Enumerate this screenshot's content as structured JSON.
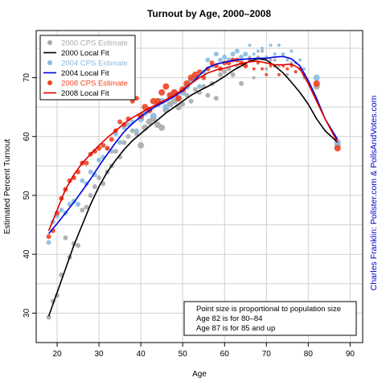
{
  "chart_data": {
    "type": "scatter",
    "title": "Turnout by Age, 2000–2008",
    "xlabel": "Age",
    "ylabel": "Estimated Percent Turnout",
    "xlim": [
      15,
      93
    ],
    "ylim": [
      25,
      78
    ],
    "x_ticks": [
      20,
      30,
      40,
      50,
      60,
      70,
      80,
      90
    ],
    "y_ticks": [
      30,
      40,
      50,
      60,
      70
    ],
    "grid": true,
    "legend_position": "top-left",
    "credit": "Charles Franklin: Pollster.com & PollsAndVotes.com",
    "note": [
      "Point size is proportional to population size",
      "Age 82 is for 80–84",
      "Age 87 is for 85 and up"
    ],
    "legend": [
      {
        "label": "2000 CPS Estimate",
        "kind": "point",
        "color": "#aaaaaa"
      },
      {
        "label": "2000 Local Fit",
        "kind": "line",
        "color": "#000000"
      },
      {
        "label": "2004 CPS Estimate",
        "kind": "point",
        "color": "#88bbe0"
      },
      {
        "label": "2004 Local Fit",
        "kind": "line",
        "color": "#0000dd"
      },
      {
        "label": "2008 CPS Estimate",
        "kind": "point",
        "color": "#ee4422"
      },
      {
        "label": "2008 Local Fit",
        "kind": "line",
        "color": "#dd0000"
      }
    ],
    "series": [
      {
        "name": "2000 CPS Estimate",
        "kind": "points",
        "color": "#aaaaaa",
        "x": [
          18,
          19,
          20,
          21,
          22,
          23,
          24,
          25,
          26,
          27,
          28,
          29,
          30,
          31,
          32,
          33,
          34,
          35,
          36,
          37,
          38,
          39,
          40,
          41,
          42,
          43,
          44,
          45,
          46,
          47,
          48,
          49,
          50,
          51,
          52,
          53,
          54,
          55,
          56,
          57,
          58,
          59,
          60,
          61,
          62,
          63,
          64,
          65,
          66,
          67,
          68,
          69,
          70,
          71,
          72,
          73,
          74,
          75,
          76,
          77,
          78,
          79,
          82,
          87
        ],
        "y": [
          29.3,
          32.0,
          33.0,
          36.5,
          42.8,
          39.5,
          41.8,
          41.5,
          47.5,
          48.0,
          50.0,
          51.5,
          53.0,
          52.0,
          54.0,
          55.0,
          57.5,
          56.5,
          59.0,
          60.0,
          61.0,
          60.5,
          58.5,
          61.5,
          62.5,
          63.0,
          62.0,
          61.5,
          64.5,
          65.5,
          66.0,
          65.0,
          65.5,
          67.0,
          66.0,
          68.0,
          67.5,
          68.5,
          67.0,
          69.0,
          66.5,
          70.5,
          71.0,
          71.5,
          70.5,
          72.0,
          69.0,
          72.0,
          73.5,
          70.0,
          73.5,
          74.5,
          71.5,
          73.0,
          73.0,
          72.0,
          74.0,
          70.5,
          72.5,
          71.0,
          71.5,
          70.0,
          68.5,
          58.5
        ],
        "sizes": [
          3,
          3,
          3,
          3,
          3,
          3,
          3,
          3,
          3,
          3,
          3,
          3,
          3,
          3,
          3,
          3,
          3,
          3,
          3,
          3,
          3,
          3,
          4,
          4,
          4,
          4,
          4,
          4,
          4,
          4,
          4,
          4,
          3,
          3,
          3,
          3,
          3,
          3,
          3,
          3,
          3,
          3,
          3,
          3,
          3,
          3,
          3,
          3,
          2,
          2,
          2,
          2,
          2,
          2,
          2,
          2,
          2,
          2,
          2,
          2,
          2,
          2,
          4,
          4
        ]
      },
      {
        "name": "2004 CPS Estimate",
        "kind": "points",
        "color": "#88bbe0",
        "x": [
          18,
          19,
          20,
          21,
          22,
          23,
          24,
          25,
          26,
          27,
          28,
          29,
          30,
          31,
          32,
          33,
          34,
          35,
          36,
          37,
          38,
          39,
          40,
          41,
          42,
          43,
          44,
          45,
          46,
          47,
          48,
          49,
          50,
          51,
          52,
          53,
          54,
          55,
          56,
          57,
          58,
          59,
          60,
          61,
          62,
          63,
          64,
          65,
          66,
          67,
          68,
          69,
          70,
          71,
          72,
          73,
          74,
          75,
          76,
          77,
          78,
          79,
          82,
          87
        ],
        "y": [
          42.0,
          45.5,
          46.5,
          47.5,
          47.0,
          48.5,
          49.0,
          48.5,
          52.5,
          52.0,
          54.0,
          53.5,
          56.0,
          56.5,
          58.0,
          57.5,
          60.5,
          59.0,
          61.5,
          62.0,
          62.5,
          61.0,
          63.0,
          64.0,
          64.5,
          63.5,
          65.5,
          66.0,
          65.0,
          67.0,
          67.5,
          66.5,
          67.5,
          68.5,
          69.5,
          70.0,
          68.5,
          71.0,
          73.0,
          72.0,
          74.0,
          73.0,
          73.5,
          73.0,
          74.0,
          74.5,
          73.5,
          74.0,
          75.5,
          74.0,
          74.5,
          75.0,
          73.5,
          75.5,
          74.0,
          75.5,
          74.0,
          73.0,
          74.5,
          72.5,
          73.0,
          71.5,
          70.0,
          59.0
        ],
        "sizes": [
          3,
          3,
          3,
          3,
          3,
          3,
          3,
          3,
          3,
          3,
          3,
          3,
          3,
          3,
          3,
          3,
          3,
          3,
          3,
          3,
          3,
          3,
          4,
          4,
          4,
          4,
          4,
          4,
          4,
          4,
          4,
          4,
          4,
          4,
          4,
          4,
          3,
          3,
          3,
          3,
          3,
          3,
          3,
          3,
          3,
          3,
          3,
          3,
          2,
          2,
          2,
          2,
          2,
          2,
          2,
          2,
          2,
          2,
          2,
          2,
          2,
          2,
          4,
          4
        ]
      },
      {
        "name": "2008 CPS Estimate",
        "kind": "points",
        "color": "#ee4422",
        "x": [
          18,
          19,
          20,
          21,
          22,
          23,
          24,
          25,
          26,
          27,
          28,
          29,
          30,
          31,
          32,
          33,
          34,
          35,
          36,
          37,
          38,
          39,
          40,
          41,
          42,
          43,
          44,
          45,
          46,
          47,
          48,
          49,
          50,
          51,
          52,
          53,
          54,
          55,
          56,
          57,
          58,
          59,
          60,
          61,
          62,
          63,
          64,
          65,
          66,
          67,
          68,
          69,
          70,
          71,
          72,
          73,
          74,
          75,
          76,
          77,
          78,
          79,
          82,
          87
        ],
        "y": [
          43.0,
          44.0,
          47.0,
          49.5,
          51.0,
          52.5,
          53.0,
          54.0,
          55.5,
          55.5,
          57.0,
          57.5,
          58.0,
          58.5,
          58.0,
          59.5,
          61.0,
          62.5,
          62.0,
          63.0,
          66.0,
          66.5,
          63.5,
          65.0,
          64.5,
          66.0,
          66.0,
          67.5,
          68.5,
          67.0,
          67.5,
          66.5,
          68.0,
          69.0,
          70.0,
          70.5,
          71.0,
          70.0,
          71.5,
          72.5,
          72.0,
          71.5,
          72.5,
          72.5,
          73.0,
          73.0,
          72.5,
          72.0,
          73.0,
          71.5,
          72.5,
          71.5,
          70.5,
          72.0,
          72.0,
          70.5,
          72.0,
          71.5,
          72.0,
          71.0,
          71.5,
          70.5,
          69.0,
          58.0
        ],
        "sizes": [
          3,
          3,
          3,
          3,
          3,
          3,
          3,
          3,
          3,
          3,
          3,
          3,
          3,
          3,
          3,
          3,
          3,
          3,
          3,
          3,
          3,
          3,
          4,
          4,
          4,
          4,
          4,
          4,
          4,
          4,
          4,
          4,
          4,
          4,
          4,
          4,
          3,
          3,
          3,
          3,
          3,
          3,
          3,
          3,
          3,
          3,
          3,
          3,
          2,
          2,
          2,
          2,
          2,
          2,
          2,
          2,
          2,
          2,
          2,
          2,
          2,
          2,
          4,
          4
        ]
      },
      {
        "name": "2000 Local Fit",
        "kind": "line",
        "color": "#000000",
        "x": [
          18,
          20,
          22,
          24,
          26,
          28,
          30,
          32,
          34,
          36,
          38,
          40,
          42,
          44,
          46,
          48,
          50,
          52,
          54,
          56,
          58,
          60,
          62,
          64,
          66,
          68,
          70,
          72,
          74,
          76,
          78,
          80,
          82,
          84,
          87
        ],
        "y": [
          29.5,
          33.5,
          37.5,
          41.5,
          45.0,
          48.5,
          51.5,
          54.0,
          56.0,
          57.8,
          59.3,
          60.5,
          61.7,
          62.8,
          64.0,
          65.0,
          66.0,
          67.0,
          67.8,
          68.5,
          69.3,
          70.2,
          71.2,
          72.0,
          72.8,
          73.2,
          73.0,
          72.0,
          70.8,
          69.2,
          67.5,
          65.5,
          63.0,
          61.0,
          59.0
        ]
      },
      {
        "name": "2004 Local Fit",
        "kind": "line",
        "color": "#0000dd",
        "x": [
          18,
          20,
          22,
          24,
          26,
          28,
          30,
          32,
          34,
          36,
          38,
          40,
          42,
          44,
          46,
          48,
          50,
          52,
          54,
          56,
          58,
          60,
          62,
          64,
          66,
          68,
          70,
          72,
          74,
          76,
          78,
          80,
          82,
          84,
          87
        ],
        "y": [
          43.5,
          45.2,
          47.0,
          48.8,
          50.8,
          52.8,
          55.0,
          57.0,
          59.0,
          60.8,
          62.2,
          63.4,
          64.4,
          65.3,
          66.0,
          66.8,
          67.8,
          69.0,
          70.4,
          71.7,
          72.3,
          72.6,
          72.9,
          73.1,
          73.2,
          73.3,
          73.3,
          73.5,
          73.6,
          73.2,
          72.0,
          69.5,
          66.5,
          63.0,
          59.5
        ]
      },
      {
        "name": "2008 Local Fit",
        "kind": "line",
        "color": "#dd0000",
        "x": [
          18,
          20,
          22,
          24,
          26,
          28,
          30,
          32,
          34,
          36,
          38,
          40,
          42,
          44,
          46,
          48,
          50,
          52,
          54,
          56,
          58,
          60,
          62,
          64,
          66,
          68,
          70,
          72,
          74,
          76,
          78,
          80,
          82,
          84,
          87
        ],
        "y": [
          44.0,
          47.5,
          51.0,
          53.5,
          55.5,
          57.0,
          58.5,
          59.8,
          61.0,
          62.2,
          63.2,
          64.0,
          64.8,
          65.5,
          66.3,
          67.0,
          68.0,
          69.0,
          70.0,
          70.8,
          71.3,
          71.6,
          72.0,
          72.4,
          72.7,
          72.8,
          72.5,
          72.2,
          72.2,
          72.3,
          71.5,
          69.0,
          66.0,
          63.0,
          59.0
        ]
      }
    ]
  }
}
